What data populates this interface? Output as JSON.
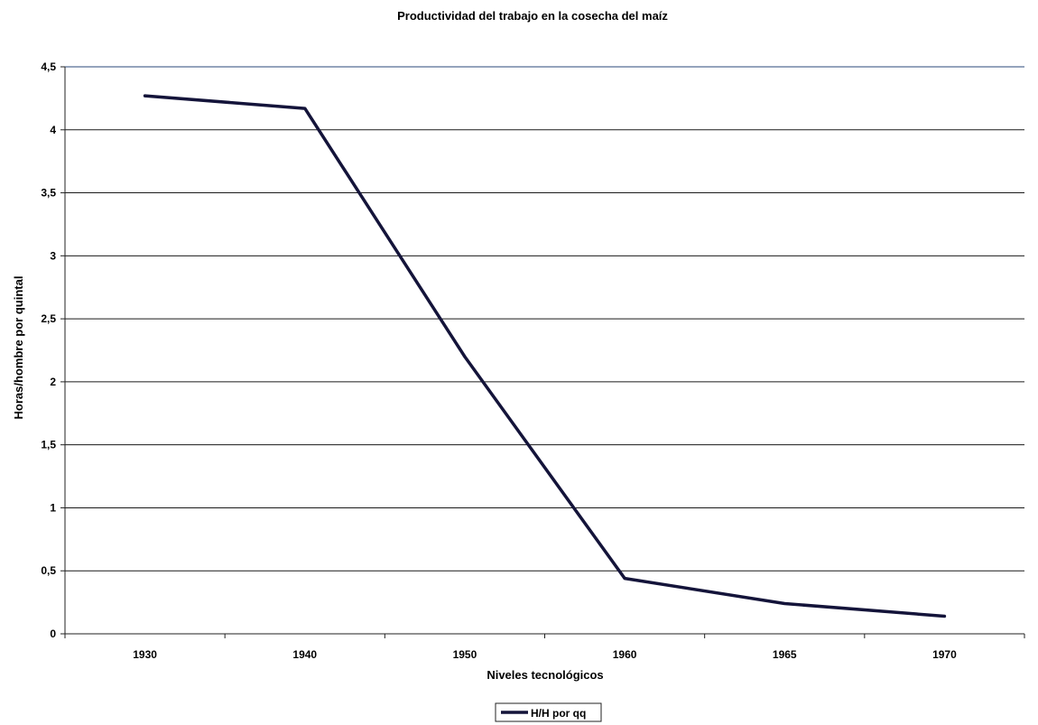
{
  "chart_data": {
    "type": "line",
    "title": "Productividad del trabajo en la cosecha del maíz",
    "xlabel": "Niveles tecnológicos",
    "ylabel": "Horas/hombre por quintal",
    "categories": [
      "1930",
      "1940",
      "1950",
      "1960",
      "1965",
      "1970"
    ],
    "series": [
      {
        "name": "H/H por qq",
        "values": [
          4.27,
          4.17,
          2.2,
          0.44,
          0.24,
          0.14
        ],
        "color": "#14143a"
      }
    ],
    "ylim": [
      0,
      4.5
    ],
    "yticks": [
      "0",
      "0,5",
      "1",
      "1,5",
      "2",
      "2,5",
      "3",
      "3,5",
      "4",
      "4,5"
    ],
    "grid": true,
    "legend_position": "bottom-center"
  }
}
